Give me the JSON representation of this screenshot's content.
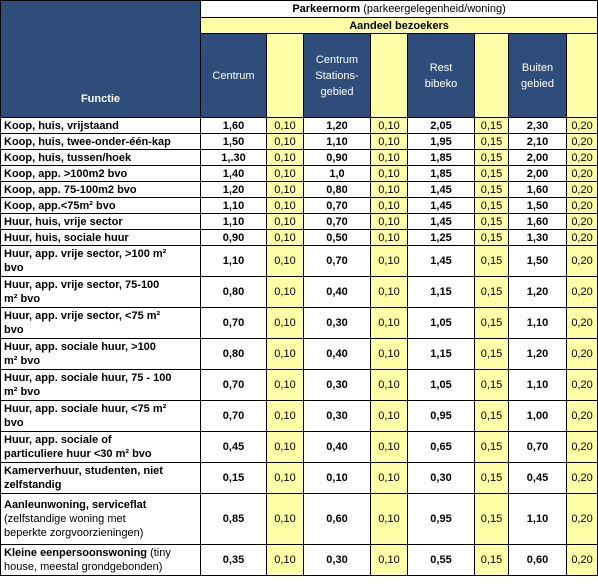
{
  "header": {
    "title_bold": "Parkeernorm",
    "title_rest": " (parkeergelegenheid/woning)",
    "subtitle": "Aandeel bezoekers",
    "functie": "Functie",
    "columns": {
      "centrum": "Centrum",
      "station_l1": "Centrum",
      "station_l2": "Stations-",
      "station_l3": "gebied",
      "rest_l1": "Rest",
      "rest_l2": "bibeko",
      "buiten_l1": "Buiten",
      "buiten_l2": "gebied"
    }
  },
  "rows": [
    {
      "l1": "Koop, huis, vrijstaand",
      "c": "1,60",
      "cb": "0,10",
      "s": "1,20",
      "sb": "0,10",
      "r": "2,05",
      "rb": "0,15",
      "b": "2,30",
      "bb": "0,20"
    },
    {
      "l1": "Koop, huis, twee-onder-één-kap",
      "c": "1,50",
      "cb": "0,10",
      "s": "1,10",
      "sb": "0,10",
      "r": "1,95",
      "rb": "0,15",
      "b": "2,10",
      "bb": "0,20"
    },
    {
      "l1": "Koop, huis, tussen/hoek",
      "c": "1,.30",
      "cb": "0,10",
      "s": "0,90",
      "sb": "0,10",
      "r": "1,85",
      "rb": "0,15",
      "b": "2,00",
      "bb": "0,20"
    },
    {
      "l1": "Koop, app. >100m2 bvo",
      "c": "1,40",
      "cb": "0,10",
      "s": "1,0",
      "sb": "0,10",
      "r": "1,85",
      "rb": "0,15",
      "b": "2,00",
      "bb": "0,20"
    },
    {
      "l1": "Koop, app. 75-100m2 bvo",
      "c": "1,20",
      "cb": "0,10",
      "s": "0,80",
      "sb": "0,10",
      "r": "1,45",
      "rb": "0,15",
      "b": "1,60",
      "bb": "0,20"
    },
    {
      "l1": "Koop, app.<75m² bvo",
      "c": "1,10",
      "cb": "0,10",
      "s": "0,70",
      "sb": "0,10",
      "r": "1,45",
      "rb": "0,15",
      "b": "1,50",
      "bb": "0,20"
    },
    {
      "l1": "Huur, huis, vrije sector",
      "c": "1,10",
      "cb": "0,10",
      "s": "0,70",
      "sb": "0,10",
      "r": "1,45",
      "rb": "0,15",
      "b": "1,60",
      "bb": "0,20"
    },
    {
      "l1": "Huur, huis, sociale huur",
      "c": "0,90",
      "cb": "0,10",
      "s": "0,50",
      "sb": "0,10",
      "r": "1,25",
      "rb": "0,15",
      "b": "1,30",
      "bb": "0,20"
    },
    {
      "l1": "Huur, app. vrije sector, >100 m²",
      "l2": "bvo",
      "c": "1,10",
      "cb": "0,10",
      "s": "0,70",
      "sb": "0,10",
      "r": "1,45",
      "rb": "0,15",
      "b": "1,50",
      "bb": "0,20"
    },
    {
      "l1": "Huur, app. vrije sector, 75-100",
      "l2": "m² bvo",
      "c": "0,80",
      "cb": "0,10",
      "s": "0,40",
      "sb": "0,10",
      "r": "1,15",
      "rb": "0,15",
      "b": "1,20",
      "bb": "0,20"
    },
    {
      "l1": "Huur, app. vrije sector, <75 m²",
      "l2": "bvo",
      "c": "0,70",
      "cb": "0,10",
      "s": "0,30",
      "sb": "0,10",
      "r": "1,05",
      "rb": "0,15",
      "b": "1,10",
      "bb": "0,20"
    },
    {
      "l1": "Huur, app. sociale huur, >100",
      "l2": "m² bvo",
      "c": "0,80",
      "cb": "0,10",
      "s": "0,40",
      "sb": "0,10",
      "r": "1,15",
      "rb": "0,15",
      "b": "1,20",
      "bb": "0,20"
    },
    {
      "l1": "Huur, app. sociale huur, 75 - 100",
      "l2": "m² bvo",
      "c": "0,70",
      "cb": "0,10",
      "s": "0,30",
      "sb": "0,10",
      "r": "1,05",
      "rb": "0,15",
      "b": "1,10",
      "bb": "0,20"
    },
    {
      "l1": "Huur, app. sociale huur, <75 m²",
      "l2": "bvo",
      "c": "0,70",
      "cb": "0,10",
      "s": "0,30",
      "sb": "0,10",
      "r": "0,95",
      "rb": "0,15",
      "b": "1,00",
      "bb": "0,20"
    },
    {
      "l1": "Huur, app. sociale of",
      "l2": "particuliere huur <30 m² bvo",
      "c": "0,45",
      "cb": "0,10",
      "s": "0,40",
      "sb": "0,10",
      "r": "0,65",
      "rb": "0,15",
      "b": "0,70",
      "bb": "0,20"
    },
    {
      "l1": "Kamerverhuur, studenten, niet",
      "l2": "zelfstandig",
      "c": "0,15",
      "cb": "0,10",
      "s": "0,10",
      "sb": "0,10",
      "r": "0,30",
      "rb": "0,15",
      "b": "0,45",
      "bb": "0,20"
    },
    {
      "l1": "Aanleunwoning, serviceflat",
      "n1": "(zelfstandige woning met",
      "n2": "beperkte zorgvoorzieningen)",
      "c": "0,85",
      "cb": "0,10",
      "s": "0,60",
      "sb": "0,10",
      "r": "0,95",
      "rb": "0,15",
      "b": "1,10",
      "bb": "0,20"
    },
    {
      "l1": "Kleine eenpersoonswoning",
      "l1n": " (tiny",
      "n1": "house, meestal grondgebonden)",
      "c": "0,35",
      "cb": "0,10",
      "s": "0,30",
      "sb": "0,10",
      "r": "0,55",
      "rb": "0,15",
      "b": "0,60",
      "bb": "0,20"
    }
  ]
}
